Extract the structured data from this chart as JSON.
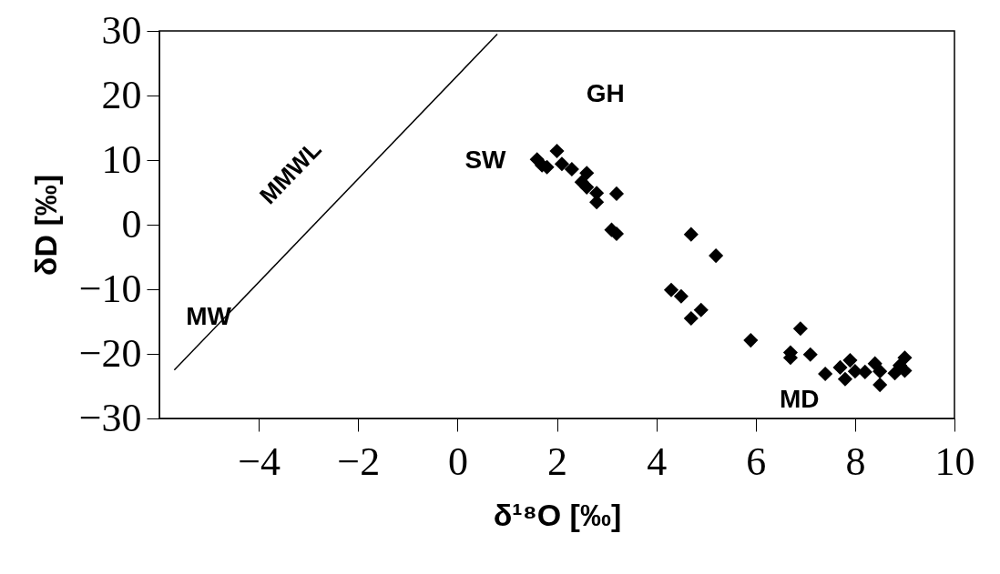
{
  "chart_data": {
    "type": "scatter",
    "xlabel": "δ¹⁸O [‰]",
    "ylabel": "δD [‰]",
    "xlim": [
      -6,
      10
    ],
    "xticks": [
      -4,
      -2,
      0,
      2,
      4,
      6,
      8,
      10
    ],
    "ylim": [
      -30,
      30
    ],
    "yticks": [
      -30,
      -20,
      -10,
      0,
      10,
      20,
      30
    ],
    "grid": false,
    "series": [
      {
        "color": "#000000",
        "marker": "diamond",
        "x": [
          1.6,
          1.7,
          1.8,
          2.0,
          2.1,
          2.3,
          2.5,
          2.6,
          2.6,
          2.8,
          2.8,
          3.2,
          3.1,
          3.2,
          4.7,
          5.2,
          4.3,
          4.5,
          4.7,
          4.9,
          5.9,
          6.7,
          6.7,
          6.9,
          7.1,
          7.4,
          7.7,
          7.8,
          7.9,
          8.0,
          8.2,
          8.4,
          8.5,
          8.5,
          8.8,
          8.9,
          9.0,
          9.0
        ],
        "values": [
          10.1,
          9.2,
          8.9,
          11.4,
          9.4,
          8.6,
          6.6,
          8.0,
          5.8,
          4.9,
          3.5,
          4.8,
          -0.8,
          -1.4,
          -1.5,
          -4.8,
          -10.1,
          -11.1,
          -14.5,
          -13.2,
          -17.9,
          -20.6,
          -19.8,
          -16.1,
          -20.1,
          -23.1,
          -22.1,
          -23.9,
          -21.0,
          -22.7,
          -22.8,
          -21.5,
          -22.7,
          -24.8,
          -23.0,
          -21.8,
          -20.6,
          -22.6
        ]
      },
      {
        "type": "line",
        "name": "MMWL",
        "color": "#000000",
        "x": [
          -5.7,
          0.8
        ],
        "values": [
          -22.5,
          29.5
        ]
      }
    ],
    "annotations": [
      "GH",
      "SW",
      "MW",
      "MD"
    ]
  }
}
